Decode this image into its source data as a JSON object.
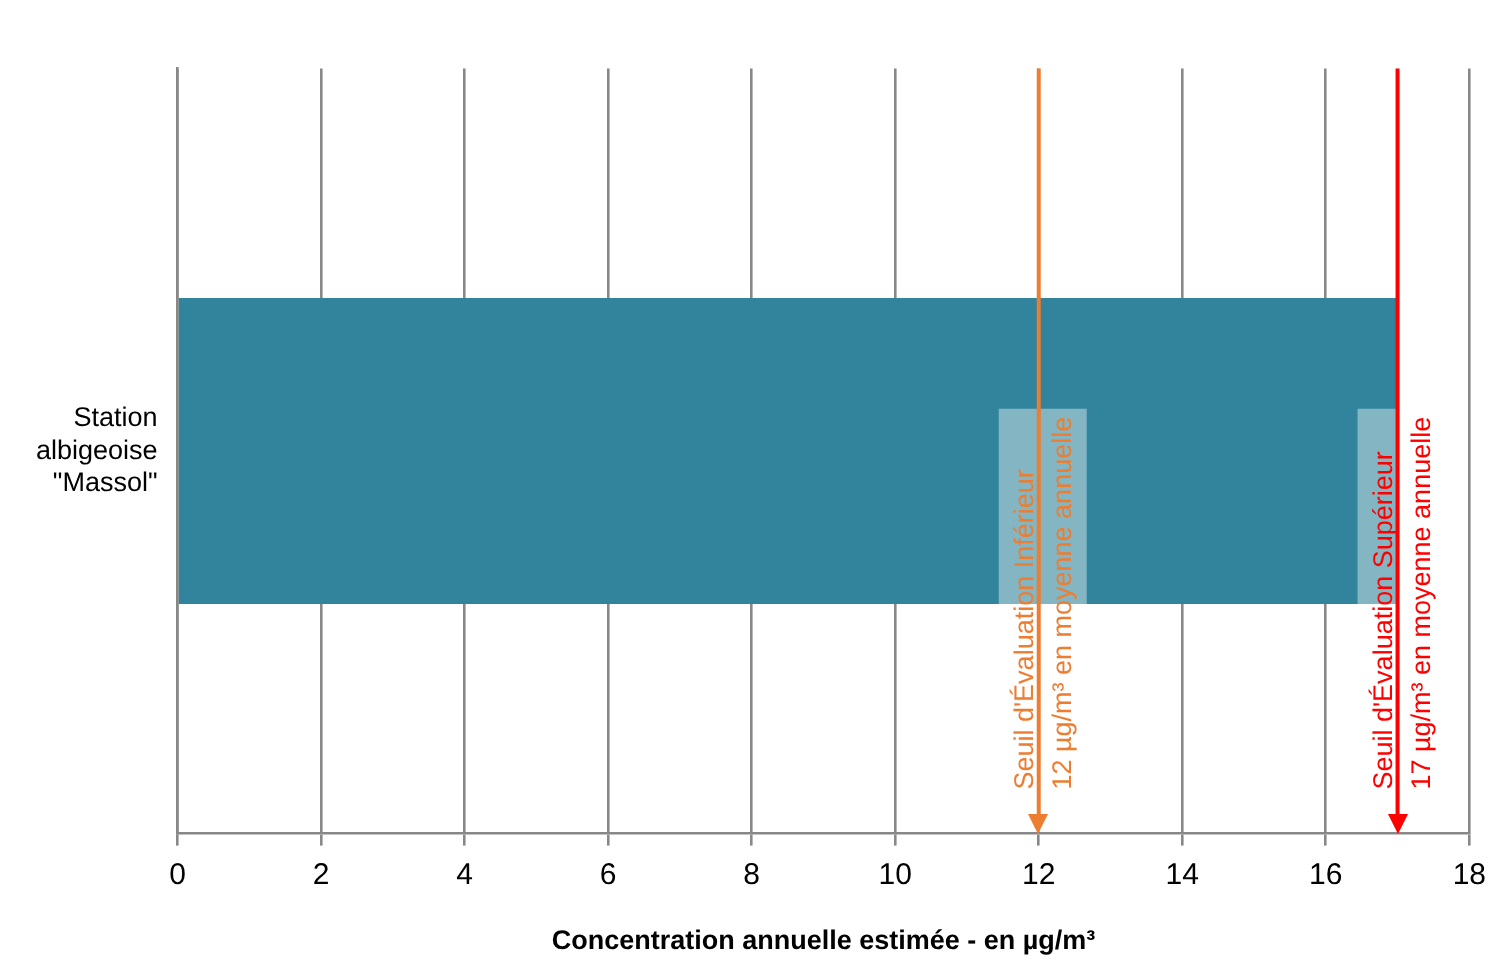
{
  "chart_data": {
    "type": "bar",
    "orientation": "horizontal",
    "categories": [
      "Station albigeoise \"Massol\""
    ],
    "values": [
      17
    ],
    "color": "#31849b",
    "xlabel": "Concentration annuelle estimée - en µg/m³",
    "xlim": [
      0,
      18
    ],
    "xticks": [
      0,
      2,
      4,
      6,
      8,
      10,
      12,
      14,
      16,
      18
    ],
    "grid": "x",
    "legend": false,
    "ref_lines": [
      {
        "axis": "x",
        "value": 12,
        "label": "Seuil d'Évaluation Inférieur\n12 µg/m³ en moyenne annuelle",
        "color": "#ed7d31"
      },
      {
        "axis": "x",
        "value": 17,
        "label": "Seuil d'Évaluation Supérieur\n17 µg/m³ en moyenne annuelle",
        "color": "#ff0000"
      }
    ]
  }
}
